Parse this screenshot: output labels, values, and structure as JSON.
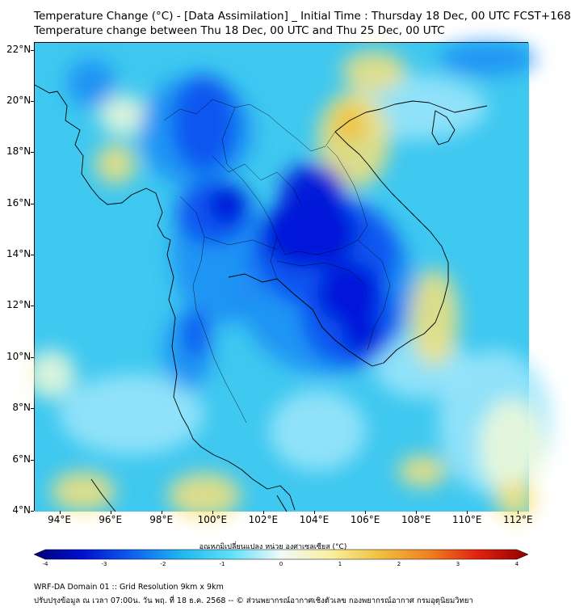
{
  "header": {
    "title": "Temperature Change (°C) - [Data Assimilation] _ Initial Time : Thursday 18 Dec, 00 UTC FCST+168",
    "subtitle": "Temperature change between Thu 18 Dec, 00 UTC and Thu 25 Dec, 00 UTC"
  },
  "map": {
    "lat_labels": [
      "22°N",
      "20°N",
      "18°N",
      "16°N",
      "14°N",
      "12°N",
      "10°N",
      "8°N",
      "6°N",
      "4°N"
    ],
    "lon_labels": [
      "94°E",
      "96°E",
      "98°E",
      "100°E",
      "102°E",
      "104°E",
      "106°E",
      "108°E",
      "110°E",
      "112°E"
    ],
    "lat_range": [
      4,
      22.3
    ],
    "lon_range": [
      93,
      112.4
    ],
    "background_color": "#3fc8f0",
    "field_colors": {
      "deep_cooling": "#0014d8",
      "strong_cooling": "#0a4bf0",
      "moderate_cooling": "#1a8cf5",
      "weak_cooling": "#9ee6fa",
      "neutral": "#f2fad8",
      "warming": "#f7e07a",
      "strong_warming": "#f0c030"
    }
  },
  "colorbar": {
    "title": "อุณหภูมิเปลี่ยนแปลง หน่วย องศาเซลเซียส (°C)",
    "labels": [
      "-4",
      "-3",
      "-2",
      "-1",
      "0",
      "1",
      "2",
      "3",
      "4"
    ],
    "range": [
      -4,
      4
    ],
    "stops": [
      "#000078",
      "#0010d0",
      "#1060f0",
      "#20b8f0",
      "#60e0f8",
      "#f0faf8",
      "#f8f0a0",
      "#f0c040",
      "#f08020",
      "#e02010",
      "#900000"
    ]
  },
  "footer": {
    "line1": "WRF-DA Domain 01 :: Grid Resolution 9km x 9km",
    "line2": "ปรับปรุงข้อมูล ณ เวลา 07:00น. วัน พฤ. ที่ 18 ธ.ค. 2568 -- © ส่วนพยากรณ์อากาศเชิงตัวเลข กองพยากรณ์อากาศ กรมอุตุนิยมวิทยา"
  }
}
